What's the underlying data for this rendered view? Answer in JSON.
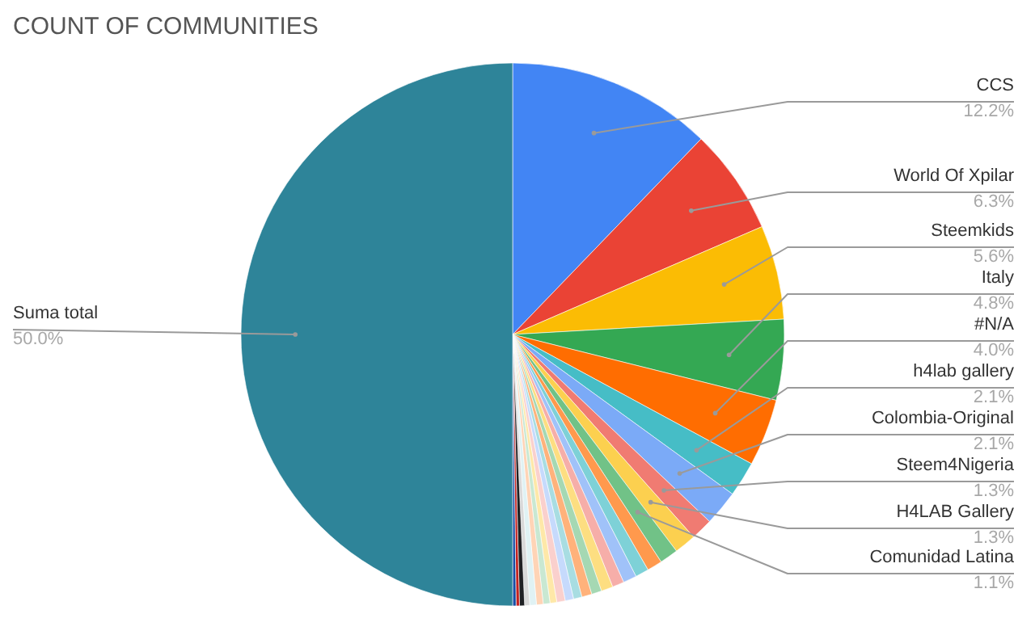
{
  "chart_data": {
    "type": "pie",
    "title": "COUNT OF COMMUNITIES",
    "categories": [
      "CCS",
      "World Of Xpilar",
      "Steemkids",
      "Italy",
      "#N/A",
      "h4lab gallery",
      "Colombia-Original",
      "Steem4Nigeria",
      "H4LAB Gallery",
      "Comunidad Latina",
      null,
      null,
      null,
      null,
      null,
      null,
      null,
      null,
      null,
      null,
      null,
      null,
      null,
      null,
      null,
      null,
      null,
      null,
      "Suma total"
    ],
    "values": [
      12.2,
      6.3,
      5.6,
      4.8,
      4.0,
      2.1,
      2.1,
      1.3,
      1.3,
      1.1,
      0.9,
      0.8,
      0.8,
      0.7,
      0.7,
      0.6,
      0.6,
      0.5,
      0.5,
      0.5,
      0.4,
      0.4,
      0.4,
      0.4,
      0.3,
      0.3,
      0.2,
      0.2,
      50.0
    ],
    "value_labels": [
      "12.2%",
      "6.3%",
      "5.6%",
      "4.8%",
      "4.0%",
      "2.1%",
      "2.1%",
      "1.3%",
      "1.3%",
      "1.1%",
      null,
      null,
      null,
      null,
      null,
      null,
      null,
      null,
      null,
      null,
      null,
      null,
      null,
      null,
      null,
      null,
      null,
      null,
      "50.0%"
    ],
    "colors": [
      "#4285f4",
      "#ea4335",
      "#fbbc04",
      "#34a853",
      "#ff6d01",
      "#46bdc6",
      "#7baaf7",
      "#f07b72",
      "#fcd04f",
      "#71c287",
      "#ff994d",
      "#7ed1d7",
      "#a0c2f9",
      "#f6aea9",
      "#fdde81",
      "#a5d8b3",
      "#ffb27b",
      "#a8dde2",
      "#c6dafc",
      "#fad0cd",
      "#fee8a8",
      "#c9e8d2",
      "#ffd4b6",
      "#e0f2f4",
      "#d9d9d9",
      "#202124",
      "#c5221f",
      "#174ea6",
      "#2e8499"
    ]
  }
}
